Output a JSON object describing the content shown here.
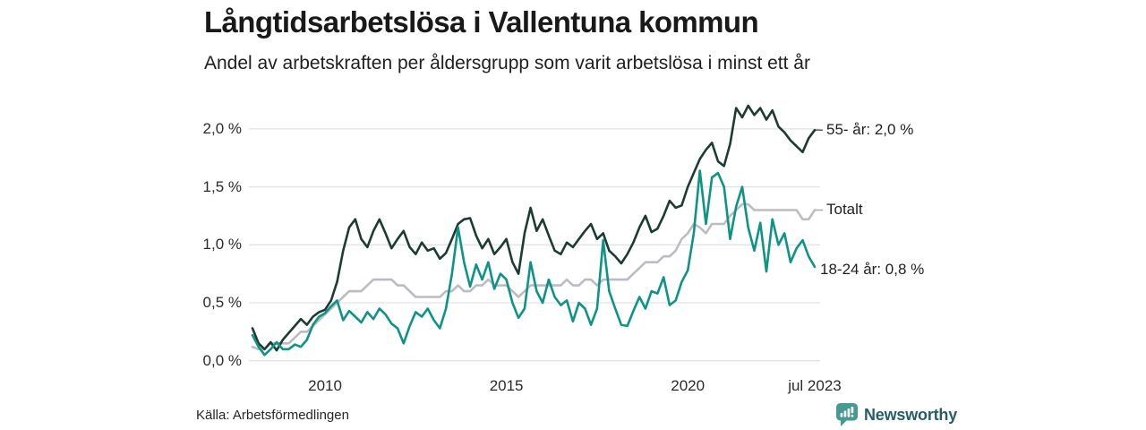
{
  "header": {
    "title": "Långtidsarbetslösa i Vallentuna kommun",
    "subtitle": "Andel av arbetskraften per åldersgrupp som varit arbetslösa i minst ett år"
  },
  "chart_data": {
    "type": "line",
    "title": "Långtidsarbetslösa i Vallentuna kommun",
    "subtitle": "Andel av arbetskraften per åldersgrupp som varit arbetslösa i minst ett år",
    "x_start_year": 2008,
    "x_step_months": 2,
    "x_end": "jul 2023",
    "ylim": [
      0,
      2.25
    ],
    "grid": "horizontal",
    "yticks": [
      {
        "label": "0,0 %",
        "value": 0.0
      },
      {
        "label": "0,5 %",
        "value": 0.5
      },
      {
        "label": "1,0 %",
        "value": 1.0
      },
      {
        "label": "1,5 %",
        "value": 1.5
      },
      {
        "label": "2,0 %",
        "value": 2.0
      }
    ],
    "xticks": [
      {
        "label": "2010",
        "year": 2010
      },
      {
        "label": "2015",
        "year": 2015
      },
      {
        "label": "2020",
        "year": 2020
      },
      {
        "label": "jul 2023",
        "year": 2023.5
      }
    ],
    "series": [
      {
        "name": "55- år",
        "end_label": "55- år: 2,0 %",
        "end_value_label": "2,0 %",
        "color": "#1c3c33",
        "dash": true,
        "label_dy": 0,
        "values": [
          0.28,
          0.15,
          0.1,
          0.16,
          0.09,
          0.18,
          0.24,
          0.3,
          0.36,
          0.31,
          0.38,
          0.42,
          0.44,
          0.52,
          0.68,
          0.95,
          1.15,
          1.22,
          1.05,
          0.98,
          1.12,
          1.22,
          1.1,
          0.97,
          1.05,
          1.12,
          0.98,
          0.92,
          1.02,
          0.95,
          0.97,
          0.88,
          0.93,
          1.05,
          1.18,
          1.22,
          1.23,
          1.08,
          0.97,
          1.05,
          0.92,
          0.98,
          1.05,
          0.85,
          0.75,
          1.1,
          1.32,
          1.12,
          1.22,
          1.08,
          0.95,
          0.92,
          1.02,
          0.98,
          1.05,
          1.12,
          1.18,
          1.05,
          1.1,
          0.95,
          0.9,
          0.84,
          0.92,
          1.02,
          1.15,
          1.25,
          1.11,
          1.14,
          1.25,
          1.38,
          1.32,
          1.34,
          1.5,
          1.62,
          1.74,
          1.82,
          1.88,
          1.72,
          1.68,
          1.87,
          2.18,
          2.1,
          2.2,
          2.12,
          2.18,
          2.08,
          2.16,
          2.02,
          1.97,
          1.9,
          1.85,
          1.8,
          1.92,
          1.99
        ]
      },
      {
        "name": "Totalt",
        "end_label": "Totalt",
        "end_value_label": "",
        "color": "#bcbcc4",
        "dash": true,
        "label_dy": 0,
        "values": [
          0.12,
          0.1,
          0.1,
          0.15,
          0.15,
          0.15,
          0.15,
          0.2,
          0.25,
          0.25,
          0.3,
          0.35,
          0.4,
          0.45,
          0.5,
          0.55,
          0.6,
          0.6,
          0.6,
          0.65,
          0.7,
          0.7,
          0.7,
          0.7,
          0.65,
          0.65,
          0.6,
          0.55,
          0.55,
          0.55,
          0.55,
          0.55,
          0.6,
          0.6,
          0.65,
          0.6,
          0.6,
          0.65,
          0.65,
          0.7,
          0.65,
          0.65,
          0.65,
          0.6,
          0.55,
          0.6,
          0.65,
          0.65,
          0.65,
          0.65,
          0.65,
          0.65,
          0.7,
          0.65,
          0.65,
          0.7,
          0.7,
          0.65,
          0.7,
          0.7,
          0.7,
          0.7,
          0.7,
          0.75,
          0.8,
          0.85,
          0.85,
          0.85,
          0.9,
          0.9,
          0.95,
          1.05,
          1.1,
          1.18,
          1.15,
          1.1,
          1.18,
          1.18,
          1.18,
          1.25,
          1.3,
          1.35,
          1.35,
          1.3,
          1.3,
          1.3,
          1.3,
          1.3,
          1.3,
          1.3,
          1.3,
          1.22,
          1.22,
          1.3
        ]
      },
      {
        "name": "18-24 år",
        "end_label": "18-24 år: 0,8 %",
        "end_value_label": "0,8 %",
        "color": "#0e9484",
        "dash": false,
        "label_dy": 3,
        "values": [
          0.22,
          0.12,
          0.05,
          0.1,
          0.16,
          0.1,
          0.1,
          0.14,
          0.12,
          0.18,
          0.31,
          0.38,
          0.41,
          0.47,
          0.52,
          0.35,
          0.43,
          0.38,
          0.33,
          0.42,
          0.36,
          0.45,
          0.4,
          0.32,
          0.28,
          0.15,
          0.3,
          0.42,
          0.38,
          0.45,
          0.35,
          0.28,
          0.45,
          0.75,
          1.15,
          0.85,
          0.64,
          0.83,
          0.7,
          0.85,
          0.62,
          0.75,
          0.7,
          0.5,
          0.37,
          0.45,
          0.85,
          0.6,
          0.5,
          0.7,
          0.55,
          0.48,
          0.52,
          0.34,
          0.5,
          0.45,
          0.31,
          0.45,
          1.04,
          0.6,
          0.45,
          0.31,
          0.3,
          0.43,
          0.55,
          0.45,
          0.6,
          0.58,
          0.72,
          0.48,
          0.52,
          0.68,
          0.78,
          1.1,
          1.64,
          1.18,
          1.58,
          1.62,
          1.5,
          1.05,
          1.33,
          1.5,
          1.15,
          0.95,
          1.19,
          0.77,
          1.22,
          1.0,
          1.1,
          0.85,
          0.97,
          1.04,
          0.9,
          0.81
        ]
      }
    ]
  },
  "footer": {
    "source": "Källa: Arbetsförmedlingen",
    "brand": "Newsworthy"
  },
  "colors": {
    "grid": "#e3e3e6",
    "text": "#1f1f1f",
    "brand_icon": "#459a91",
    "brand_text": "#275e66"
  }
}
